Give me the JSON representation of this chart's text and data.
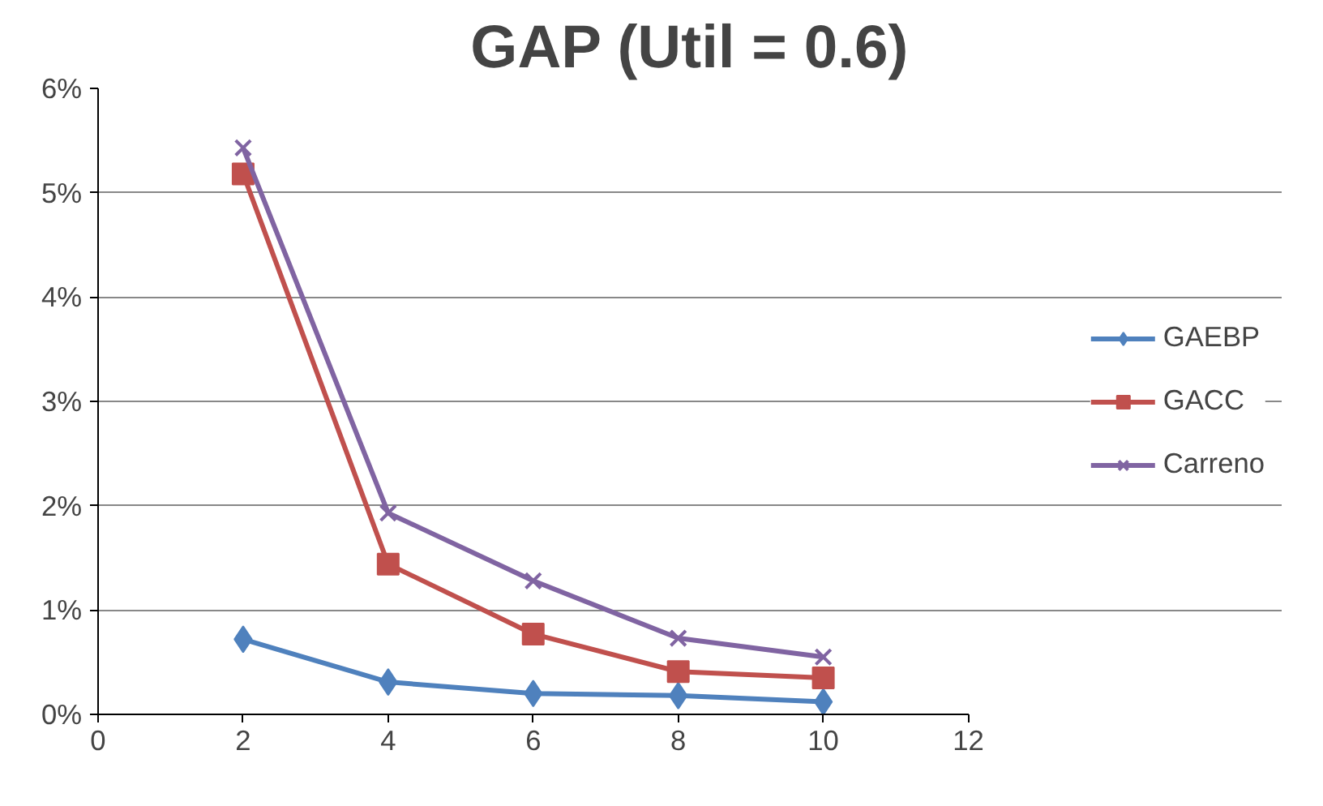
{
  "chart_data": {
    "type": "line",
    "title": "GAP (Util = 0.6)",
    "x": [
      2,
      4,
      6,
      8,
      10
    ],
    "series": [
      {
        "name": "GAEBP",
        "color": "#4f81bd",
        "marker": "diamond",
        "values": [
          0.72,
          0.31,
          0.2,
          0.18,
          0.12
        ]
      },
      {
        "name": "GACC",
        "color": "#c0504d",
        "marker": "square",
        "values": [
          5.18,
          1.44,
          0.77,
          0.41,
          0.35
        ]
      },
      {
        "name": "Carreno",
        "color": "#8064a2",
        "marker": "cross",
        "values": [
          5.43,
          1.93,
          1.28,
          0.73,
          0.55
        ]
      }
    ],
    "xlim": [
      0,
      12
    ],
    "xticks": [
      0,
      2,
      4,
      6,
      8,
      10,
      12
    ],
    "ylim": [
      0,
      6
    ],
    "yticks": [
      {
        "value": 0,
        "label": "0%"
      },
      {
        "value": 1,
        "label": "1%"
      },
      {
        "value": 2,
        "label": "2%"
      },
      {
        "value": 3,
        "label": "3%"
      },
      {
        "value": 4,
        "label": "4%"
      },
      {
        "value": 5,
        "label": "5%"
      },
      {
        "value": 6,
        "label": "6%"
      }
    ],
    "grid": "y",
    "legend": "right",
    "line_style": "solid"
  }
}
